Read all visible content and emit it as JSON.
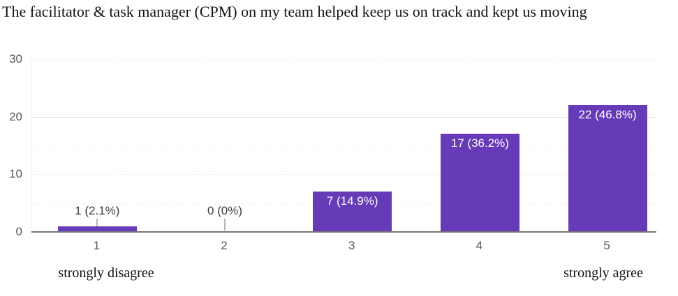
{
  "chart_data": {
    "type": "bar",
    "title": "The facilitator & task manager (CPM) on my team helped keep us on track and kept us moving",
    "categories": [
      "1",
      "2",
      "3",
      "4",
      "5"
    ],
    "values": [
      1,
      0,
      7,
      17,
      22
    ],
    "bar_labels": [
      "1 (2.1%)",
      "0 (0%)",
      "7 (14.9%)",
      "17 (36.2%)",
      "22 (46.8%)"
    ],
    "percentages": [
      2.1,
      0,
      14.9,
      36.2,
      46.8
    ],
    "xlabel_left": "strongly disagree",
    "xlabel_right": "strongly agree",
    "ylim": [
      0,
      30
    ],
    "yticks": [
      0,
      10,
      20,
      30
    ],
    "yticks_minor": [
      5,
      15,
      25
    ],
    "grid": true,
    "legend_position": "none",
    "bar_color": "#673ab7",
    "axis_line_color": "#757575",
    "annotation_inside_color": "#ffffff",
    "annotation_outside_color": "#3d3d3d",
    "axis_text_color": "#56585c"
  }
}
